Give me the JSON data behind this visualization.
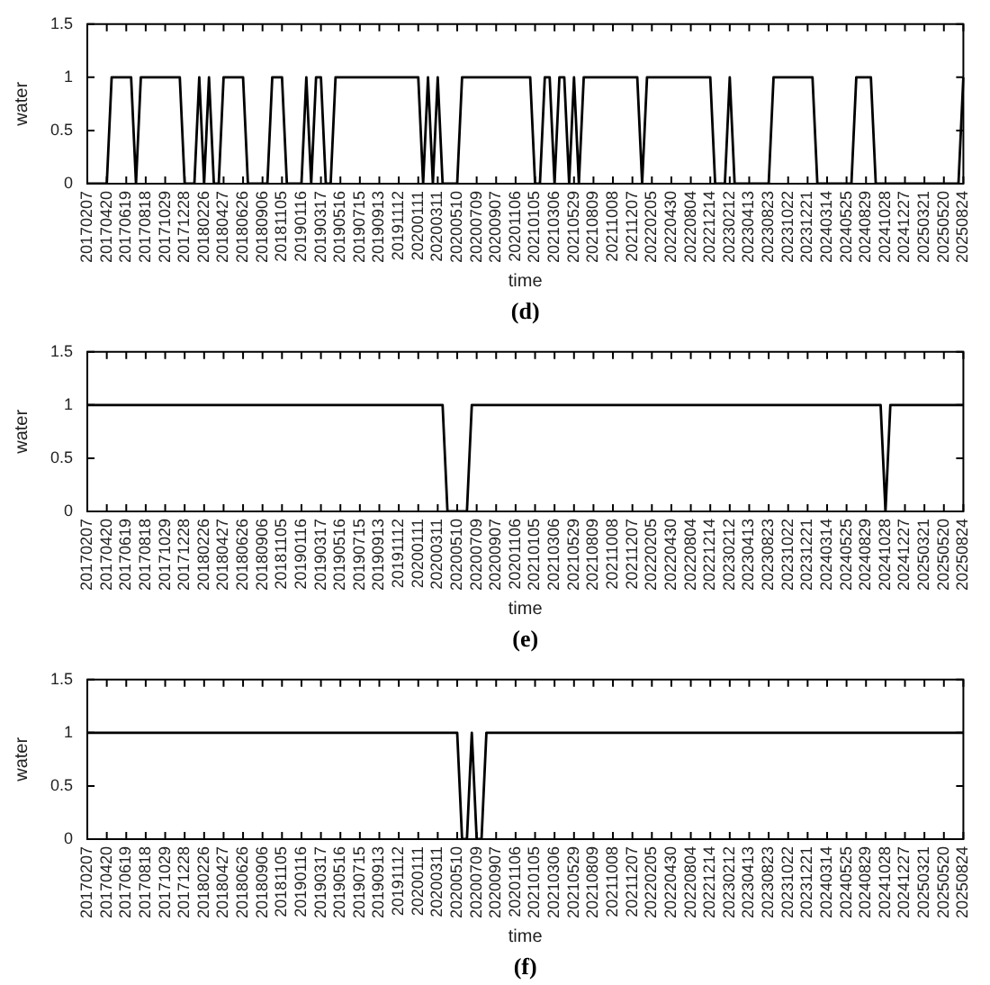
{
  "chart_data": [
    {
      "type": "line",
      "xlabel": "time",
      "ylabel": "water",
      "annotations": [
        "(d)"
      ],
      "marker": "none",
      "grid": false,
      "legend": false,
      "ylim": [
        0,
        1.5
      ],
      "yticks": [
        0,
        0.5,
        1,
        1.5
      ],
      "categories": [
        "20170207",
        null,
        null,
        null,
        "20170420",
        null,
        null,
        null,
        "20170619",
        null,
        null,
        null,
        "20170818",
        null,
        null,
        null,
        "20171029",
        null,
        null,
        null,
        "20171228",
        null,
        null,
        null,
        "20180226",
        null,
        null,
        null,
        "20180427",
        null,
        null,
        null,
        "20180626",
        null,
        null,
        null,
        "20180906",
        null,
        null,
        null,
        "20181105",
        null,
        null,
        null,
        "20190116",
        null,
        null,
        null,
        "20190317",
        null,
        null,
        null,
        "20190516",
        null,
        null,
        null,
        "20190715",
        null,
        null,
        null,
        "20190913",
        null,
        null,
        null,
        "20191112",
        null,
        null,
        null,
        "20200111",
        null,
        null,
        null,
        "20200311",
        null,
        null,
        null,
        "20200510",
        null,
        null,
        null,
        "20200709",
        null,
        null,
        null,
        "20200907",
        null,
        null,
        null,
        "20201106",
        null,
        null,
        null,
        "20210105",
        null,
        null,
        null,
        "20210306",
        null,
        null,
        null,
        "20210529",
        null,
        null,
        null,
        "20210809",
        null,
        null,
        null,
        "20211008",
        null,
        null,
        null,
        "20211207",
        null,
        null,
        null,
        "20220205",
        null,
        null,
        null,
        "20220430",
        null,
        null,
        null,
        "20220804",
        null,
        null,
        null,
        "20221214",
        null,
        null,
        null,
        "20230212",
        null,
        null,
        null,
        "20230413",
        null,
        null,
        null,
        "20230823",
        null,
        null,
        null,
        "20231022",
        null,
        null,
        null,
        "20231221",
        null,
        null,
        null,
        "20240314",
        null,
        null,
        null,
        "20240525",
        null,
        null,
        null,
        "20240829",
        null,
        null,
        null,
        "20241028",
        null,
        null,
        null,
        "20241227",
        null,
        null,
        null,
        "20250321",
        null,
        null,
        null,
        "20250520",
        null,
        null,
        null,
        "20250824"
      ],
      "series": [
        {
          "color": "#000000",
          "values": [
            0,
            0,
            0,
            0,
            0,
            1,
            1,
            1,
            1,
            1,
            0,
            1,
            1,
            1,
            1,
            1,
            1,
            1,
            1,
            1,
            0,
            0,
            0,
            1,
            0,
            1,
            0,
            0,
            1,
            1,
            1,
            1,
            1,
            0,
            0,
            0,
            0,
            0,
            1,
            1,
            1,
            0,
            0,
            0,
            0,
            1,
            0,
            1,
            1,
            0,
            0,
            1,
            1,
            1,
            1,
            1,
            1,
            1,
            1,
            1,
            1,
            1,
            1,
            1,
            1,
            1,
            1,
            1,
            1,
            0,
            1,
            0,
            1,
            0,
            0,
            0,
            0,
            1,
            1,
            1,
            1,
            1,
            1,
            1,
            1,
            1,
            1,
            1,
            1,
            1,
            1,
            1,
            0,
            0,
            1,
            1,
            0,
            1,
            1,
            0,
            1,
            0,
            1,
            1,
            1,
            1,
            1,
            1,
            1,
            1,
            1,
            1,
            1,
            1,
            0,
            1,
            1,
            1,
            1,
            1,
            1,
            1,
            1,
            1,
            1,
            1,
            1,
            1,
            1,
            0,
            0,
            0,
            1,
            0,
            0,
            0,
            0,
            0,
            0,
            0,
            0,
            1,
            1,
            1,
            1,
            1,
            1,
            1,
            1,
            1,
            0,
            0,
            0,
            0,
            0,
            0,
            0,
            0,
            1,
            1,
            1,
            1,
            0,
            0,
            0,
            0,
            0,
            0,
            0,
            0,
            0,
            0,
            0,
            0,
            0,
            0,
            0,
            0,
            0,
            0,
            1
          ]
        }
      ]
    },
    {
      "type": "line",
      "xlabel": "time",
      "ylabel": "water",
      "annotations": [
        "(e)"
      ],
      "marker": "none",
      "grid": false,
      "legend": false,
      "ylim": [
        0,
        1.5
      ],
      "yticks": [
        0,
        0.5,
        1,
        1.5
      ],
      "categories": [
        "20170207",
        null,
        null,
        null,
        "20170420",
        null,
        null,
        null,
        "20170619",
        null,
        null,
        null,
        "20170818",
        null,
        null,
        null,
        "20171029",
        null,
        null,
        null,
        "20171228",
        null,
        null,
        null,
        "20180226",
        null,
        null,
        null,
        "20180427",
        null,
        null,
        null,
        "20180626",
        null,
        null,
        null,
        "20180906",
        null,
        null,
        null,
        "20181105",
        null,
        null,
        null,
        "20190116",
        null,
        null,
        null,
        "20190317",
        null,
        null,
        null,
        "20190516",
        null,
        null,
        null,
        "20190715",
        null,
        null,
        null,
        "20190913",
        null,
        null,
        null,
        "20191112",
        null,
        null,
        null,
        "20200111",
        null,
        null,
        null,
        "20200311",
        null,
        null,
        null,
        "20200510",
        null,
        null,
        null,
        "20200709",
        null,
        null,
        null,
        "20200907",
        null,
        null,
        null,
        "20201106",
        null,
        null,
        null,
        "20210105",
        null,
        null,
        null,
        "20210306",
        null,
        null,
        null,
        "20210529",
        null,
        null,
        null,
        "20210809",
        null,
        null,
        null,
        "20211008",
        null,
        null,
        null,
        "20211207",
        null,
        null,
        null,
        "20220205",
        null,
        null,
        null,
        "20220430",
        null,
        null,
        null,
        "20220804",
        null,
        null,
        null,
        "20221214",
        null,
        null,
        null,
        "20230212",
        null,
        null,
        null,
        "20230413",
        null,
        null,
        null,
        "20230823",
        null,
        null,
        null,
        "20231022",
        null,
        null,
        null,
        "20231221",
        null,
        null,
        null,
        "20240314",
        null,
        null,
        null,
        "20240525",
        null,
        null,
        null,
        "20240829",
        null,
        null,
        null,
        "20241028",
        null,
        null,
        null,
        "20241227",
        null,
        null,
        null,
        "20250321",
        null,
        null,
        null,
        "20250520",
        null,
        null,
        null,
        "20250824"
      ],
      "series": [
        {
          "color": "#000000",
          "values": [
            1,
            1,
            1,
            1,
            1,
            1,
            1,
            1,
            1,
            1,
            1,
            1,
            1,
            1,
            1,
            1,
            1,
            1,
            1,
            1,
            1,
            1,
            1,
            1,
            1,
            1,
            1,
            1,
            1,
            1,
            1,
            1,
            1,
            1,
            1,
            1,
            1,
            1,
            1,
            1,
            1,
            1,
            1,
            1,
            1,
            1,
            1,
            1,
            1,
            1,
            1,
            1,
            1,
            1,
            1,
            1,
            1,
            1,
            1,
            1,
            1,
            1,
            1,
            1,
            1,
            1,
            1,
            1,
            1,
            1,
            1,
            1,
            1,
            1,
            0,
            0,
            0,
            0,
            0,
            1,
            1,
            1,
            1,
            1,
            1,
            1,
            1,
            1,
            1,
            1,
            1,
            1,
            1,
            1,
            1,
            1,
            1,
            1,
            1,
            1,
            1,
            1,
            1,
            1,
            1,
            1,
            1,
            1,
            1,
            1,
            1,
            1,
            1,
            1,
            1,
            1,
            1,
            1,
            1,
            1,
            1,
            1,
            1,
            1,
            1,
            1,
            1,
            1,
            1,
            1,
            1,
            1,
            1,
            1,
            1,
            1,
            1,
            1,
            1,
            1,
            1,
            1,
            1,
            1,
            1,
            1,
            1,
            1,
            1,
            1,
            1,
            1,
            1,
            1,
            1,
            1,
            1,
            1,
            1,
            1,
            1,
            1,
            1,
            1,
            0,
            1,
            1,
            1,
            1,
            1,
            1,
            1,
            1,
            1,
            1,
            1,
            1,
            1,
            1,
            1,
            1
          ]
        }
      ]
    },
    {
      "type": "line",
      "xlabel": "time",
      "ylabel": "water",
      "annotations": [
        "(f)"
      ],
      "marker": "none",
      "grid": false,
      "legend": false,
      "ylim": [
        0,
        1.5
      ],
      "yticks": [
        0,
        0.5,
        1,
        1.5
      ],
      "categories": [
        "20170207",
        null,
        null,
        null,
        "20170420",
        null,
        null,
        null,
        "20170619",
        null,
        null,
        null,
        "20170818",
        null,
        null,
        null,
        "20171029",
        null,
        null,
        null,
        "20171228",
        null,
        null,
        null,
        "20180226",
        null,
        null,
        null,
        "20180427",
        null,
        null,
        null,
        "20180626",
        null,
        null,
        null,
        "20180906",
        null,
        null,
        null,
        "20181105",
        null,
        null,
        null,
        "20190116",
        null,
        null,
        null,
        "20190317",
        null,
        null,
        null,
        "20190516",
        null,
        null,
        null,
        "20190715",
        null,
        null,
        null,
        "20190913",
        null,
        null,
        null,
        "20191112",
        null,
        null,
        null,
        "20200111",
        null,
        null,
        null,
        "20200311",
        null,
        null,
        null,
        "20200510",
        null,
        null,
        null,
        "20200709",
        null,
        null,
        null,
        "20200907",
        null,
        null,
        null,
        "20201106",
        null,
        null,
        null,
        "20210105",
        null,
        null,
        null,
        "20210306",
        null,
        null,
        null,
        "20210529",
        null,
        null,
        null,
        "20210809",
        null,
        null,
        null,
        "20211008",
        null,
        null,
        null,
        "20211207",
        null,
        null,
        null,
        "20220205",
        null,
        null,
        null,
        "20220430",
        null,
        null,
        null,
        "20220804",
        null,
        null,
        null,
        "20221214",
        null,
        null,
        null,
        "20230212",
        null,
        null,
        null,
        "20230413",
        null,
        null,
        null,
        "20230823",
        null,
        null,
        null,
        "20231022",
        null,
        null,
        null,
        "20231221",
        null,
        null,
        null,
        "20240314",
        null,
        null,
        null,
        "20240525",
        null,
        null,
        null,
        "20240829",
        null,
        null,
        null,
        "20241028",
        null,
        null,
        null,
        "20241227",
        null,
        null,
        null,
        "20250321",
        null,
        null,
        null,
        "20250520",
        null,
        null,
        null,
        "20250824"
      ],
      "series": [
        {
          "color": "#000000",
          "values": [
            1,
            1,
            1,
            1,
            1,
            1,
            1,
            1,
            1,
            1,
            1,
            1,
            1,
            1,
            1,
            1,
            1,
            1,
            1,
            1,
            1,
            1,
            1,
            1,
            1,
            1,
            1,
            1,
            1,
            1,
            1,
            1,
            1,
            1,
            1,
            1,
            1,
            1,
            1,
            1,
            1,
            1,
            1,
            1,
            1,
            1,
            1,
            1,
            1,
            1,
            1,
            1,
            1,
            1,
            1,
            1,
            1,
            1,
            1,
            1,
            1,
            1,
            1,
            1,
            1,
            1,
            1,
            1,
            1,
            1,
            1,
            1,
            1,
            1,
            1,
            1,
            1,
            0,
            0,
            1,
            0,
            0,
            1,
            1,
            1,
            1,
            1,
            1,
            1,
            1,
            1,
            1,
            1,
            1,
            1,
            1,
            1,
            1,
            1,
            1,
            1,
            1,
            1,
            1,
            1,
            1,
            1,
            1,
            1,
            1,
            1,
            1,
            1,
            1,
            1,
            1,
            1,
            1,
            1,
            1,
            1,
            1,
            1,
            1,
            1,
            1,
            1,
            1,
            1,
            1,
            1,
            1,
            1,
            1,
            1,
            1,
            1,
            1,
            1,
            1,
            1,
            1,
            1,
            1,
            1,
            1,
            1,
            1,
            1,
            1,
            1,
            1,
            1,
            1,
            1,
            1,
            1,
            1,
            1,
            1,
            1,
            1,
            1,
            1,
            1,
            1,
            1,
            1,
            1,
            1,
            1,
            1,
            1,
            1,
            1,
            1,
            1,
            1,
            1,
            1,
            1
          ]
        }
      ]
    }
  ]
}
